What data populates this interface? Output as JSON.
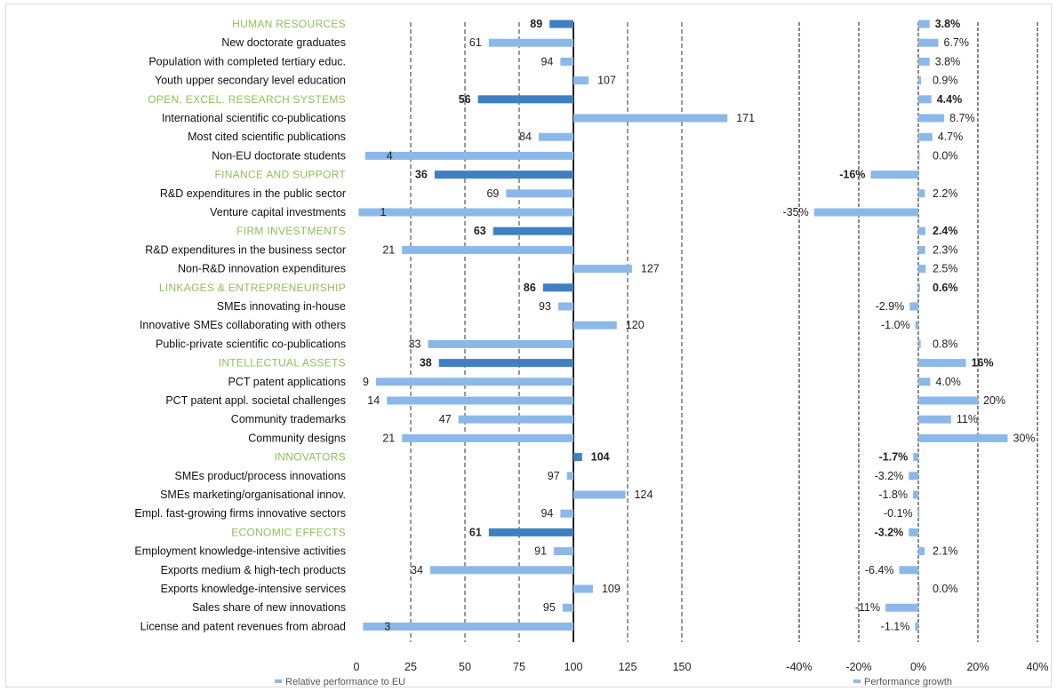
{
  "colors": {
    "bar": "#8bb8e8",
    "section_bar": "#3f7fc4",
    "section_label": "#8fbf5a",
    "gridline": "#555555",
    "axis": "#222222"
  },
  "chart_data": [
    {
      "type": "bar",
      "orientation": "horizontal",
      "categories": [
        "HUMAN RESOURCES",
        "New doctorate graduates",
        "Population with completed tertiary educ.",
        "Youth upper secondary level education",
        "OPEN, EXCEL. RESEARCH SYSTEMS",
        "International scientific co-publications",
        "Most cited scientific publications",
        "Non-EU doctorate students",
        "FINANCE AND SUPPORT",
        "R&D expenditures in the public sector",
        "Venture capital investments",
        "FIRM INVESTMENTS",
        "R&D expenditures in the business sector",
        "Non-R&D innovation expenditures",
        "LINKAGES & ENTREPRENEURSHIP",
        "SMEs innovating in-house",
        "Innovative SMEs collaborating with others",
        "Public-private scientific co-publications",
        "INTELLECTUAL ASSETS",
        "PCT patent applications",
        "PCT patent appl. societal challenges",
        "Community trademarks",
        "Community designs",
        "INNOVATORS",
        "SMEs product/process innovations",
        "SMEs marketing/organisational innov.",
        "Empl. fast-growing firms innovative sectors",
        "ECONOMIC EFFECTS",
        "Employment knowledge-intensive activities",
        "Exports medium & high-tech products",
        "Exports knowledge-intensive services",
        "Sales share of new innovations",
        "License and patent revenues from abroad"
      ],
      "section_flags": [
        true,
        false,
        false,
        false,
        true,
        false,
        false,
        false,
        true,
        false,
        false,
        true,
        false,
        false,
        true,
        false,
        false,
        false,
        true,
        false,
        false,
        false,
        false,
        true,
        false,
        false,
        false,
        true,
        false,
        false,
        false,
        false,
        false
      ],
      "values": [
        89,
        61,
        94,
        107,
        56,
        171,
        84,
        4,
        36,
        69,
        1,
        63,
        21,
        127,
        86,
        93,
        120,
        33,
        38,
        9,
        14,
        47,
        21,
        104,
        97,
        124,
        94,
        61,
        91,
        34,
        109,
        95,
        3
      ],
      "value_labels": [
        "89",
        "61",
        "94",
        "107",
        "56",
        "171",
        "84",
        "4",
        "36",
        "69",
        "1",
        "63",
        "21",
        "127",
        "86",
        "93",
        "120",
        "33",
        "38",
        "9",
        "14",
        "47",
        "21",
        "104",
        "97",
        "124",
        "94",
        "61",
        "91",
        "34",
        "109",
        "95",
        "3"
      ],
      "baseline": 100,
      "xlim": [
        0,
        150
      ],
      "xticks": [
        "0",
        "25",
        "50",
        "75",
        "100",
        "125",
        "150"
      ],
      "grid": true,
      "legend": "Relative performance to EU"
    },
    {
      "type": "bar",
      "orientation": "horizontal",
      "values": [
        3.8,
        6.7,
        3.8,
        0.9,
        4.4,
        8.7,
        4.7,
        0.0,
        -16,
        2.2,
        -35,
        2.4,
        2.3,
        2.5,
        0.6,
        -2.9,
        -1.0,
        0.8,
        16,
        4.0,
        20,
        11,
        30,
        -1.7,
        -3.2,
        -1.8,
        -0.1,
        -3.2,
        2.1,
        -6.4,
        0.0,
        -11,
        -1.1
      ],
      "value_labels": [
        "3.8%",
        "6.7%",
        "3.8%",
        "0.9%",
        "4.4%",
        "8.7%",
        "4.7%",
        "0.0%",
        "-16%",
        "2.2%",
        "-35%",
        "2.4%",
        "2.3%",
        "2.5%",
        "0.6%",
        "-2.9%",
        "-1.0%",
        "0.8%",
        "16%",
        "4.0%",
        "20%",
        "11%",
        "30%",
        "-1.7%",
        "-3.2%",
        "-1.8%",
        "-0.1%",
        "-3.2%",
        "2.1%",
        "-6.4%",
        "0.0%",
        "-11%",
        "-1.1%"
      ],
      "xlim": [
        -40,
        40
      ],
      "xticks": [
        "-40%",
        "-20%",
        "0%",
        "20%",
        "40%"
      ],
      "grid": true,
      "legend": "Performance growth"
    }
  ]
}
